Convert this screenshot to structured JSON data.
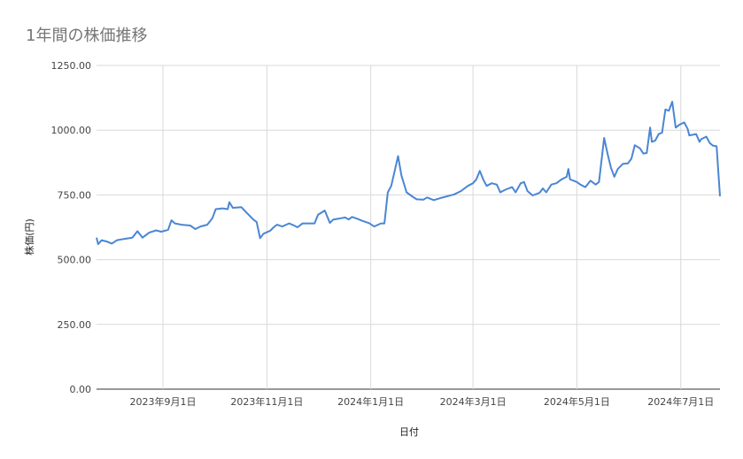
{
  "chart_data": {
    "type": "line",
    "title": "1年間の株価推移",
    "xlabel": "日付",
    "ylabel": "株価(円)",
    "ylim": [
      0,
      1250
    ],
    "y_ticks": [
      "0.00",
      "250.00",
      "500.00",
      "750.00",
      "1000.00",
      "1250.00"
    ],
    "y_tick_values": [
      0,
      250,
      500,
      750,
      1000,
      1250
    ],
    "x_range": [
      "2023-07-24",
      "2024-07-24"
    ],
    "x_ticks": [
      {
        "date": "2023-09-01",
        "label": "2023年9月1日"
      },
      {
        "date": "2023-11-01",
        "label": "2023年11月1日"
      },
      {
        "date": "2024-01-01",
        "label": "2024年1月1日"
      },
      {
        "date": "2024-03-01",
        "label": "2024年3月1日"
      },
      {
        "date": "2024-05-01",
        "label": "2024年5月1日"
      },
      {
        "date": "2024-07-01",
        "label": "2024年7月1日"
      }
    ],
    "grid": true,
    "line_color": "#4a86d4",
    "series": [
      {
        "points": [
          [
            "2023-07-24",
            585
          ],
          [
            "2023-07-25",
            560
          ],
          [
            "2023-07-27",
            575
          ],
          [
            "2023-07-30",
            570
          ],
          [
            "2023-08-02",
            562
          ],
          [
            "2023-08-05",
            575
          ],
          [
            "2023-08-09",
            580
          ],
          [
            "2023-08-14",
            585
          ],
          [
            "2023-08-17",
            610
          ],
          [
            "2023-08-20",
            585
          ],
          [
            "2023-08-24",
            605
          ],
          [
            "2023-08-28",
            613
          ],
          [
            "2023-08-31",
            608
          ],
          [
            "2023-09-04",
            615
          ],
          [
            "2023-09-06",
            652
          ],
          [
            "2023-09-08",
            640
          ],
          [
            "2023-09-12",
            635
          ],
          [
            "2023-09-17",
            632
          ],
          [
            "2023-09-20",
            618
          ],
          [
            "2023-09-23",
            628
          ],
          [
            "2023-09-27",
            635
          ],
          [
            "2023-09-30",
            660
          ],
          [
            "2023-10-02",
            695
          ],
          [
            "2023-10-06",
            698
          ],
          [
            "2023-10-09",
            695
          ],
          [
            "2023-10-10",
            722
          ],
          [
            "2023-10-12",
            700
          ],
          [
            "2023-10-17",
            703
          ],
          [
            "2023-10-20",
            682
          ],
          [
            "2023-10-24",
            655
          ],
          [
            "2023-10-26",
            645
          ],
          [
            "2023-10-28",
            583
          ],
          [
            "2023-10-30",
            600
          ],
          [
            "2023-11-03",
            612
          ],
          [
            "2023-11-05",
            625
          ],
          [
            "2023-11-07",
            635
          ],
          [
            "2023-11-10",
            628
          ],
          [
            "2023-11-14",
            640
          ],
          [
            "2023-11-17",
            632
          ],
          [
            "2023-11-19",
            625
          ],
          [
            "2023-11-22",
            640
          ],
          [
            "2023-11-26",
            640
          ],
          [
            "2023-11-29",
            640
          ],
          [
            "2023-12-01",
            673
          ],
          [
            "2023-12-05",
            690
          ],
          [
            "2023-12-08",
            642
          ],
          [
            "2023-12-10",
            655
          ],
          [
            "2023-12-13",
            658
          ],
          [
            "2023-12-17",
            663
          ],
          [
            "2023-12-19",
            655
          ],
          [
            "2023-12-21",
            665
          ],
          [
            "2023-12-24",
            658
          ],
          [
            "2023-12-27",
            650
          ],
          [
            "2023-12-31",
            641
          ],
          [
            "2024-01-03",
            628
          ],
          [
            "2024-01-07",
            640
          ],
          [
            "2024-01-09",
            640
          ],
          [
            "2024-01-11",
            760
          ],
          [
            "2024-01-13",
            785
          ],
          [
            "2024-01-17",
            900
          ],
          [
            "2024-01-19",
            825
          ],
          [
            "2024-01-22",
            760
          ],
          [
            "2024-01-26",
            741
          ],
          [
            "2024-01-28",
            733
          ],
          [
            "2024-02-01",
            732
          ],
          [
            "2024-02-03",
            740
          ],
          [
            "2024-02-07",
            730
          ],
          [
            "2024-02-11",
            738
          ],
          [
            "2024-02-15",
            745
          ],
          [
            "2024-02-19",
            752
          ],
          [
            "2024-02-23",
            765
          ],
          [
            "2024-02-27",
            785
          ],
          [
            "2024-03-01",
            795
          ],
          [
            "2024-03-03",
            810
          ],
          [
            "2024-03-05",
            843
          ],
          [
            "2024-03-07",
            810
          ],
          [
            "2024-03-09",
            785
          ],
          [
            "2024-03-12",
            795
          ],
          [
            "2024-03-15",
            790
          ],
          [
            "2024-03-17",
            760
          ],
          [
            "2024-03-20",
            770
          ],
          [
            "2024-03-24",
            780
          ],
          [
            "2024-03-26",
            760
          ],
          [
            "2024-03-29",
            795
          ],
          [
            "2024-03-31",
            800
          ],
          [
            "2024-04-02",
            765
          ],
          [
            "2024-04-05",
            748
          ],
          [
            "2024-04-09",
            758
          ],
          [
            "2024-04-11",
            775
          ],
          [
            "2024-04-13",
            760
          ],
          [
            "2024-04-16",
            790
          ],
          [
            "2024-04-19",
            795
          ],
          [
            "2024-04-22",
            810
          ],
          [
            "2024-04-25",
            820
          ],
          [
            "2024-04-26",
            850
          ],
          [
            "2024-04-27",
            810
          ],
          [
            "2024-05-01",
            800
          ],
          [
            "2024-05-03",
            790
          ],
          [
            "2024-05-06",
            780
          ],
          [
            "2024-05-09",
            805
          ],
          [
            "2024-05-12",
            790
          ],
          [
            "2024-05-14",
            800
          ],
          [
            "2024-05-17",
            970
          ],
          [
            "2024-05-19",
            910
          ],
          [
            "2024-05-21",
            855
          ],
          [
            "2024-05-23",
            820
          ],
          [
            "2024-05-25",
            850
          ],
          [
            "2024-05-28",
            870
          ],
          [
            "2024-05-31",
            872
          ],
          [
            "2024-06-02",
            890
          ],
          [
            "2024-06-04",
            942
          ],
          [
            "2024-06-07",
            930
          ],
          [
            "2024-06-09",
            910
          ],
          [
            "2024-06-11",
            912
          ],
          [
            "2024-06-13",
            1010
          ],
          [
            "2024-06-14",
            955
          ],
          [
            "2024-06-16",
            960
          ],
          [
            "2024-06-18",
            985
          ],
          [
            "2024-06-20",
            990
          ],
          [
            "2024-06-22",
            1080
          ],
          [
            "2024-06-24",
            1075
          ],
          [
            "2024-06-26",
            1110
          ],
          [
            "2024-06-28",
            1010
          ],
          [
            "2024-06-30",
            1020
          ],
          [
            "2024-07-03",
            1030
          ],
          [
            "2024-07-05",
            1005
          ],
          [
            "2024-07-06",
            980
          ],
          [
            "2024-07-10",
            985
          ],
          [
            "2024-07-12",
            955
          ],
          [
            "2024-07-13",
            965
          ],
          [
            "2024-07-16",
            975
          ],
          [
            "2024-07-18",
            950
          ],
          [
            "2024-07-20",
            940
          ],
          [
            "2024-07-22",
            938
          ],
          [
            "2024-07-24",
            745
          ]
        ]
      }
    ]
  }
}
